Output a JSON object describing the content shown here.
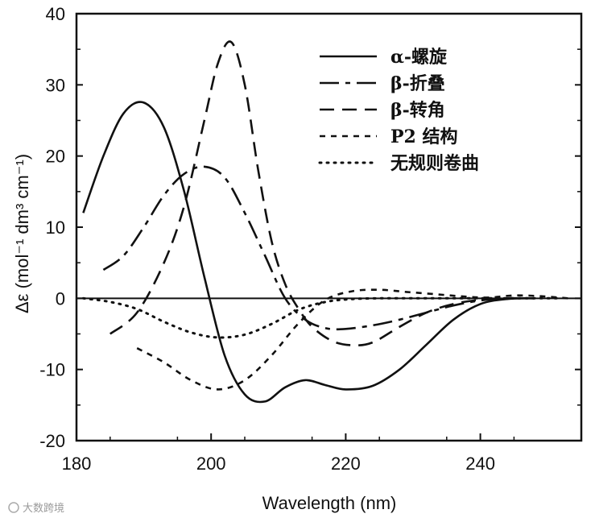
{
  "chart_data": {
    "type": "line",
    "title": "",
    "xlabel": "Wavelength (nm)",
    "ylabel": "Δε (mol⁻¹ dm³ cm⁻¹)",
    "xlim": [
      180,
      255
    ],
    "ylim": [
      -20,
      40
    ],
    "xticks": [
      180,
      200,
      220,
      240
    ],
    "xtick_labels": [
      "180",
      "200",
      "220",
      "240"
    ],
    "yticks": [
      -20,
      -10,
      0,
      10,
      20,
      30,
      40
    ],
    "ytick_labels": [
      "-20",
      "-10",
      "0",
      "10",
      "20",
      "30",
      "40"
    ],
    "legend_position": "top-right",
    "series": [
      {
        "name": "α-螺旋",
        "style": "solid",
        "x": [
          181,
          184,
          187,
          190,
          193,
          196,
          199,
          202,
          205,
          208,
          211,
          214,
          217,
          220,
          224,
          228,
          232,
          236,
          240,
          244,
          248
        ],
        "y": [
          12,
          20,
          26,
          27.5,
          24,
          15,
          3,
          -8,
          -13.5,
          -14.5,
          -12.5,
          -11.5,
          -12.2,
          -12.8,
          -12.3,
          -10,
          -6.5,
          -3,
          -0.8,
          -0.1,
          0
        ]
      },
      {
        "name": "β-折叠",
        "style": "longdash",
        "x": [
          184,
          187,
          190,
          193,
          196,
          199,
          202,
          205,
          208,
          211,
          214,
          217,
          220,
          224,
          228,
          232,
          236,
          240,
          244,
          248
        ],
        "y": [
          4,
          6,
          10,
          14.5,
          17.5,
          18.5,
          17,
          12,
          6,
          0,
          -3,
          -4.2,
          -4.3,
          -3.8,
          -3,
          -2,
          -1,
          -0.3,
          0,
          0
        ]
      },
      {
        "name": "β-转角",
        "style": "dash",
        "x": [
          185,
          189,
          193,
          196,
          199,
          201,
          203,
          205,
          207,
          209,
          211,
          213,
          215,
          218,
          221,
          224,
          228,
          232,
          236,
          240,
          244,
          248
        ],
        "y": [
          -5,
          -2,
          5,
          13,
          25,
          33,
          36,
          30,
          18,
          8,
          2,
          -1.5,
          -4,
          -6,
          -6.6,
          -6.2,
          -4,
          -2,
          -0.8,
          -0.2,
          0,
          0
        ]
      },
      {
        "name": "P2 结构",
        "style": "shortdash",
        "x": [
          189,
          193,
          197,
          201,
          205,
          209,
          213,
          217,
          221,
          225,
          229,
          233,
          237,
          241,
          245,
          249,
          253
        ],
        "y": [
          -7,
          -9,
          -11.5,
          -12.8,
          -11.5,
          -8,
          -3.5,
          -0.2,
          1,
          1.2,
          0.9,
          0.6,
          0.3,
          0.1,
          0.4,
          0.3,
          0
        ]
      },
      {
        "name": "无规则卷曲",
        "style": "dotted",
        "x": [
          181,
          185,
          189,
          193,
          197,
          201,
          205,
          209,
          213,
          217,
          221,
          225,
          229,
          233,
          237,
          241,
          245,
          249,
          252
        ],
        "y": [
          0,
          -0.5,
          -1.5,
          -3.3,
          -4.8,
          -5.5,
          -5.1,
          -3.6,
          -1.6,
          -0.5,
          -0.1,
          0,
          0,
          0,
          0,
          0,
          0,
          0,
          0
        ]
      }
    ]
  },
  "watermark": "大数跨境"
}
